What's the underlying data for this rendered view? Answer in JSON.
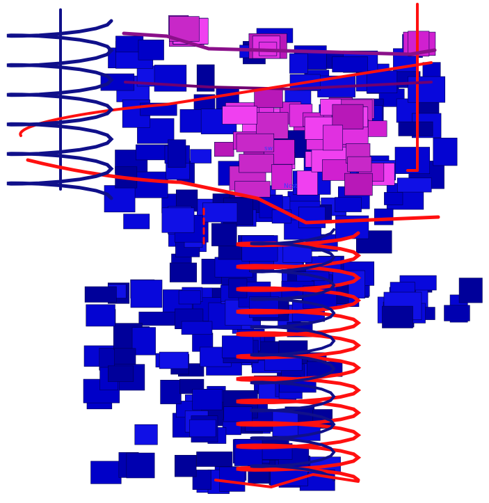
{
  "labels": {
    "first": "sw",
    "second": "Ncst"
  }
}
